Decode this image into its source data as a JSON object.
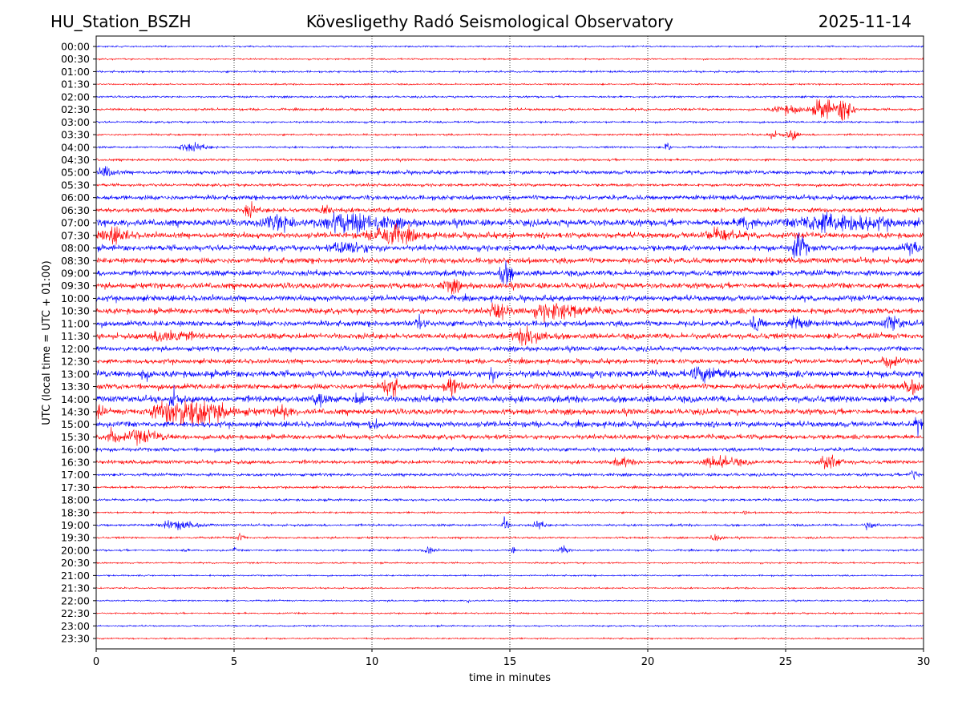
{
  "header": {
    "station": "HU_Station_BSZH",
    "title": "Kövesligethy Radó Seismological Observatory",
    "date": "2025-11-14"
  },
  "chart_data": {
    "type": "line",
    "subtype": "helicorder",
    "xlabel": "time in minutes",
    "ylabel": "UTC (local time = UTC + 01:00)",
    "xlim": [
      0,
      30
    ],
    "xticks": [
      "0",
      "5",
      "10",
      "15",
      "20",
      "25",
      "30"
    ],
    "grid": "vertical dotted at 5-minute ticks",
    "colors": [
      "#0000ff",
      "#ff0000"
    ],
    "rows": [
      "00:00",
      "00:30",
      "01:00",
      "01:30",
      "02:00",
      "02:30",
      "03:00",
      "03:30",
      "04:00",
      "04:30",
      "05:00",
      "05:30",
      "06:00",
      "06:30",
      "07:00",
      "07:30",
      "08:00",
      "08:30",
      "09:00",
      "09:30",
      "10:00",
      "10:30",
      "11:00",
      "11:30",
      "12:00",
      "12:30",
      "13:00",
      "13:30",
      "14:00",
      "14:30",
      "15:00",
      "15:30",
      "16:00",
      "16:30",
      "17:00",
      "17:30",
      "18:00",
      "18:30",
      "19:00",
      "19:30",
      "20:00",
      "20:30",
      "21:00",
      "21:30",
      "22:00",
      "22:30",
      "23:00",
      "23:30"
    ],
    "noise_level": [
      0.8,
      0.8,
      1,
      0.8,
      1,
      1.2,
      1,
      1,
      1,
      1.2,
      2,
      1.5,
      2.5,
      2.5,
      3.5,
      3,
      3,
      3,
      3,
      3,
      3,
      3,
      3,
      3,
      2.5,
      2.5,
      3.5,
      3,
      3.5,
      3,
      3,
      2.5,
      2,
      2,
      1.5,
      1.2,
      1.2,
      1,
      1.2,
      1,
      1,
      0.8,
      0.8,
      0.8,
      0.8,
      0.8,
      0.8,
      0.8
    ],
    "events": [
      {
        "row": 5,
        "minute": 26.3,
        "amp": 8,
        "dur": 0.6
      },
      {
        "row": 5,
        "minute": 27.1,
        "amp": 10,
        "dur": 0.4
      },
      {
        "row": 5,
        "minute": 25,
        "amp": 3,
        "dur": 1
      },
      {
        "row": 7,
        "minute": 25.2,
        "amp": 4,
        "dur": 0.3
      },
      {
        "row": 7,
        "minute": 24.5,
        "amp": 2,
        "dur": 0.5
      },
      {
        "row": 8,
        "minute": 3.3,
        "amp": 3,
        "dur": 0.8
      },
      {
        "row": 8,
        "minute": 20.7,
        "amp": 3,
        "dur": 0.2
      },
      {
        "row": 10,
        "minute": 0.3,
        "amp": 4,
        "dur": 0.4
      },
      {
        "row": 13,
        "minute": 5.5,
        "amp": 5,
        "dur": 0.3
      },
      {
        "row": 13,
        "minute": 8.2,
        "amp": 4,
        "dur": 0.3
      },
      {
        "row": 14,
        "minute": 9,
        "amp": 6,
        "dur": 2
      },
      {
        "row": 14,
        "minute": 6.5,
        "amp": 5,
        "dur": 1
      },
      {
        "row": 14,
        "minute": 26.5,
        "amp": 6,
        "dur": 2.5
      },
      {
        "row": 14,
        "minute": 23.5,
        "amp": 5,
        "dur": 0.5
      },
      {
        "row": 15,
        "minute": 0.5,
        "amp": 5,
        "dur": 0.8
      },
      {
        "row": 15,
        "minute": 10.5,
        "amp": 7,
        "dur": 1.2
      },
      {
        "row": 15,
        "minute": 22.5,
        "amp": 4,
        "dur": 1
      },
      {
        "row": 16,
        "minute": 25.4,
        "amp": 10,
        "dur": 0.4
      },
      {
        "row": 16,
        "minute": 9,
        "amp": 4,
        "dur": 1
      },
      {
        "row": 16,
        "minute": 29.5,
        "amp": 4,
        "dur": 0.5
      },
      {
        "row": 18,
        "minute": 14.8,
        "amp": 7,
        "dur": 0.4
      },
      {
        "row": 19,
        "minute": 12.8,
        "amp": 4,
        "dur": 0.5
      },
      {
        "row": 21,
        "minute": 14.5,
        "amp": 6,
        "dur": 0.5
      },
      {
        "row": 21,
        "minute": 16.5,
        "amp": 5,
        "dur": 1.5
      },
      {
        "row": 22,
        "minute": 11.7,
        "amp": 4,
        "dur": 0.3
      },
      {
        "row": 22,
        "minute": 23.9,
        "amp": 6,
        "dur": 0.3
      },
      {
        "row": 22,
        "minute": 25.3,
        "amp": 5,
        "dur": 0.5
      },
      {
        "row": 22,
        "minute": 28.8,
        "amp": 5,
        "dur": 0.5
      },
      {
        "row": 23,
        "minute": 2.5,
        "amp": 5,
        "dur": 1
      },
      {
        "row": 23,
        "minute": 15.6,
        "amp": 6,
        "dur": 0.8
      },
      {
        "row": 25,
        "minute": 28.7,
        "amp": 4,
        "dur": 0.5
      },
      {
        "row": 26,
        "minute": 1.7,
        "amp": 5,
        "dur": 0.2
      },
      {
        "row": 26,
        "minute": 14.3,
        "amp": 5,
        "dur": 0.2
      },
      {
        "row": 26,
        "minute": 22,
        "amp": 4,
        "dur": 1
      },
      {
        "row": 27,
        "minute": 10.6,
        "amp": 8,
        "dur": 0.4
      },
      {
        "row": 27,
        "minute": 12.8,
        "amp": 8,
        "dur": 0.4
      },
      {
        "row": 27,
        "minute": 29.5,
        "amp": 5,
        "dur": 0.4
      },
      {
        "row": 28,
        "minute": 2.8,
        "amp": 6,
        "dur": 0.3
      },
      {
        "row": 28,
        "minute": 8,
        "amp": 5,
        "dur": 0.3
      },
      {
        "row": 28,
        "minute": 9.5,
        "amp": 4,
        "dur": 0.3
      },
      {
        "row": 29,
        "minute": 3,
        "amp": 10,
        "dur": 2
      },
      {
        "row": 29,
        "minute": 6.7,
        "amp": 5,
        "dur": 0.4
      },
      {
        "row": 29,
        "minute": 0.1,
        "amp": 4,
        "dur": 0.2
      },
      {
        "row": 30,
        "minute": 29.8,
        "amp": 5,
        "dur": 0.3
      },
      {
        "row": 30,
        "minute": 10,
        "amp": 4,
        "dur": 0.3
      },
      {
        "row": 31,
        "minute": 0.5,
        "amp": 5,
        "dur": 0.4
      },
      {
        "row": 31,
        "minute": 1.5,
        "amp": 4,
        "dur": 1
      },
      {
        "row": 33,
        "minute": 26.5,
        "amp": 5,
        "dur": 0.6
      },
      {
        "row": 33,
        "minute": 22.5,
        "amp": 4,
        "dur": 1
      },
      {
        "row": 33,
        "minute": 19,
        "amp": 3,
        "dur": 0.5
      },
      {
        "row": 34,
        "minute": 29.6,
        "amp": 4,
        "dur": 0.3
      },
      {
        "row": 37,
        "minute": 23.5,
        "amp": 2,
        "dur": 0.1
      },
      {
        "row": 38,
        "minute": 14.8,
        "amp": 5,
        "dur": 0.2
      },
      {
        "row": 38,
        "minute": 2.8,
        "amp": 3,
        "dur": 1
      },
      {
        "row": 38,
        "minute": 16,
        "amp": 3,
        "dur": 0.3
      },
      {
        "row": 38,
        "minute": 28,
        "amp": 3,
        "dur": 0.3
      },
      {
        "row": 39,
        "minute": 22.4,
        "amp": 3,
        "dur": 0.3
      },
      {
        "row": 39,
        "minute": 5.2,
        "amp": 3,
        "dur": 0.2
      },
      {
        "row": 40,
        "minute": 3.2,
        "amp": 3,
        "dur": 0.1
      },
      {
        "row": 40,
        "minute": 12,
        "amp": 3,
        "dur": 0.3
      },
      {
        "row": 40,
        "minute": 15.1,
        "amp": 3,
        "dur": 0.1
      },
      {
        "row": 40,
        "minute": 16.9,
        "amp": 3,
        "dur": 0.3
      },
      {
        "row": 40,
        "minute": 5,
        "amp": 2,
        "dur": 0.1
      },
      {
        "row": 44,
        "minute": 13.5,
        "amp": 2,
        "dur": 0.1
      }
    ]
  }
}
